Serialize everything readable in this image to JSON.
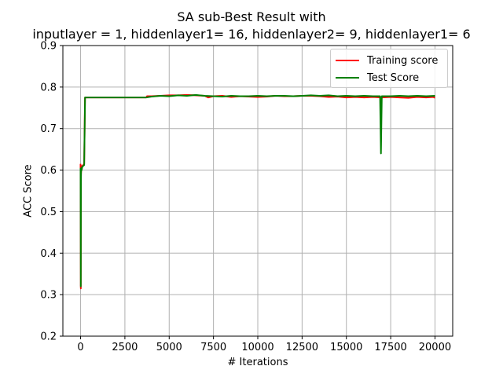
{
  "chart_data": {
    "type": "line",
    "title": [
      "SA sub-Best Result with",
      "inputlayer = 1, hiddenlayer1= 16, hiddenlayer2= 9, hiddenlayer1= 6"
    ],
    "xlabel": "# Iterations",
    "ylabel": "ACC Score",
    "xlim": [
      -1000,
      21000
    ],
    "ylim": [
      0.2,
      0.9
    ],
    "xticks": [
      0,
      2500,
      5000,
      7500,
      10000,
      12500,
      15000,
      17500,
      20000
    ],
    "yticks": [
      0.2,
      0.3,
      0.4,
      0.5,
      0.6,
      0.7,
      0.8,
      0.9
    ],
    "grid": true,
    "legend_position": "top-right",
    "series": [
      {
        "name": "Training score",
        "color": "#ff0000",
        "x": [
          0,
          10,
          20,
          40,
          60,
          80,
          100,
          150,
          200,
          250,
          3700,
          3750,
          4000,
          4500,
          5000,
          5500,
          6000,
          6500,
          7000,
          7200,
          7500,
          8000,
          8500,
          9000,
          9500,
          10000,
          10500,
          11000,
          11500,
          12000,
          12500,
          13000,
          13500,
          14000,
          14500,
          15000,
          15500,
          16000,
          16500,
          17000,
          17500,
          18000,
          18500,
          19000,
          19500,
          19900,
          20000
        ],
        "y": [
          0.615,
          0.315,
          0.58,
          0.61,
          0.6,
          0.605,
          0.61,
          0.612,
          0.615,
          0.775,
          0.775,
          0.778,
          0.778,
          0.779,
          0.78,
          0.78,
          0.781,
          0.78,
          0.779,
          0.775,
          0.778,
          0.779,
          0.776,
          0.778,
          0.777,
          0.776,
          0.777,
          0.779,
          0.778,
          0.778,
          0.779,
          0.779,
          0.778,
          0.776,
          0.777,
          0.775,
          0.776,
          0.775,
          0.776,
          0.775,
          0.776,
          0.775,
          0.774,
          0.776,
          0.775,
          0.776,
          0.774
        ]
      },
      {
        "name": "Test Score",
        "color": "#008000",
        "x": [
          0,
          10,
          20,
          40,
          60,
          80,
          100,
          150,
          200,
          250,
          3700,
          4000,
          4500,
          5000,
          5500,
          6000,
          6500,
          7000,
          7500,
          8000,
          8500,
          9000,
          9500,
          10000,
          10500,
          11000,
          11500,
          12000,
          12500,
          13000,
          13500,
          14000,
          14500,
          15000,
          15500,
          16000,
          16500,
          16900,
          16950,
          17000,
          17500,
          18000,
          18500,
          19000,
          19500,
          20000
        ],
        "y": [
          0.605,
          0.32,
          0.59,
          0.605,
          0.6,
          0.605,
          0.608,
          0.61,
          0.612,
          0.775,
          0.775,
          0.777,
          0.779,
          0.778,
          0.78,
          0.779,
          0.781,
          0.779,
          0.778,
          0.777,
          0.779,
          0.778,
          0.778,
          0.779,
          0.778,
          0.779,
          0.779,
          0.778,
          0.779,
          0.78,
          0.779,
          0.78,
          0.778,
          0.779,
          0.778,
          0.779,
          0.778,
          0.778,
          0.64,
          0.778,
          0.778,
          0.779,
          0.778,
          0.779,
          0.778,
          0.779
        ]
      }
    ]
  }
}
